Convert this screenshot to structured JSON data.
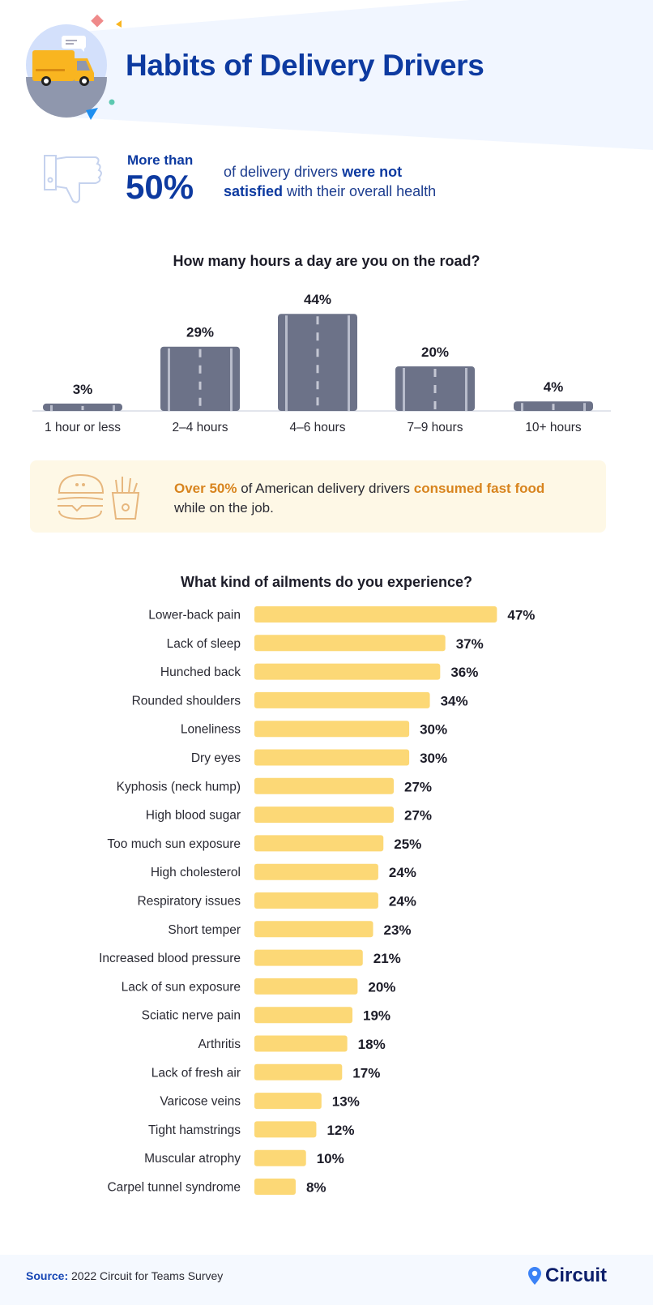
{
  "header": {
    "title": "Habits of Delivery Drivers",
    "icon": "delivery-truck-icon"
  },
  "stat": {
    "prefix": "More than",
    "value": "50%",
    "text_1": "of delivery drivers ",
    "text_bold_1": "were not",
    "text_bold_2": "satisfied",
    "text_2": " with their overall health",
    "icon": "thumbs-down-icon"
  },
  "food": {
    "bold_1": "Over 50%",
    "text_1": " of American delivery drivers ",
    "bold_2": "consumed fast food",
    "text_2": " while on the job.",
    "icons": [
      "burger-icon",
      "fries-icon"
    ]
  },
  "footer": {
    "source_label": "Source:",
    "source_text": " 2022 Circuit for Teams Survey",
    "brand": "Circuit"
  },
  "colors": {
    "title": "#0d3aa0",
    "road_bar": "#6c7288",
    "ailment_bar": "#fcd876",
    "food_accent": "#d8841e",
    "brand_pin": "#3b82f6"
  },
  "chart_data": [
    {
      "type": "bar",
      "title": "How many hours a day are you on the road?",
      "categories": [
        "1 hour or less",
        "2–4 hours",
        "4–6 hours",
        "7–9 hours",
        "10+ hours"
      ],
      "values": [
        3,
        29,
        44,
        20,
        4
      ],
      "labels": [
        "3%",
        "29%",
        "44%",
        "20%",
        "4%"
      ],
      "unit": "%"
    },
    {
      "type": "bar",
      "orientation": "horizontal",
      "title": "What kind of ailments do you experience?",
      "categories": [
        "Lower-back pain",
        "Lack of sleep",
        "Hunched back",
        "Rounded shoulders",
        "Loneliness",
        "Dry eyes",
        "Kyphosis (neck hump)",
        "High blood sugar",
        "Too much sun exposure",
        "High cholesterol",
        "Respiratory issues",
        "Short temper",
        "Increased blood pressure",
        "Lack of sun exposure",
        "Sciatic nerve pain",
        "Arthritis",
        "Lack of fresh air",
        "Varicose veins",
        "Tight hamstrings",
        "Muscular atrophy",
        "Carpel tunnel syndrome"
      ],
      "values": [
        47,
        37,
        36,
        34,
        30,
        30,
        27,
        27,
        25,
        24,
        24,
        23,
        21,
        20,
        19,
        18,
        17,
        13,
        12,
        10,
        8
      ],
      "labels": [
        "47%",
        "37%",
        "36%",
        "34%",
        "30%",
        "30%",
        "27%",
        "27%",
        "25%",
        "24%",
        "24%",
        "23%",
        "21%",
        "20%",
        "19%",
        "18%",
        "17%",
        "13%",
        "12%",
        "10%",
        "8%"
      ],
      "unit": "%"
    }
  ]
}
